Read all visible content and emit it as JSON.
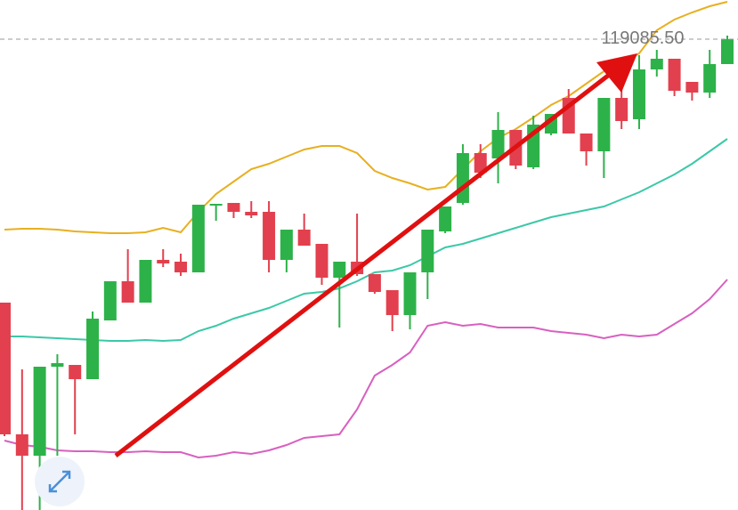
{
  "chart_data": {
    "type": "candlestick",
    "up_color": "#2db24a",
    "down_color": "#e2404e",
    "ylim": [
      113795,
      119525
    ],
    "open": [
      116125,
      114645,
      114405,
      115405,
      115425,
      115265,
      115925,
      116365,
      116125,
      116605,
      116585,
      116465,
      117215,
      117245,
      117145,
      117145,
      116605,
      116945,
      116785,
      116405,
      116585,
      116445,
      116265,
      115985,
      116465,
      116925,
      117245,
      117805,
      117745,
      118065,
      117645,
      118025,
      118425,
      118025,
      117825,
      118425,
      118185,
      118745,
      118865,
      118605,
      118485,
      118805
    ],
    "high": [
      116125,
      115375,
      115405,
      115545,
      115425,
      116025,
      116365,
      116725,
      116605,
      116725,
      116675,
      117225,
      117235,
      117245,
      117265,
      117265,
      116945,
      117125,
      116785,
      116585,
      117125,
      116445,
      116265,
      116465,
      116945,
      117205,
      117905,
      117905,
      118265,
      118065,
      118225,
      118245,
      118525,
      118025,
      118425,
      118625,
      118905,
      118965,
      118865,
      118605,
      118965,
      119125
    ],
    "low": [
      114625,
      113795,
      113795,
      114405,
      114645,
      115265,
      115925,
      116125,
      116125,
      116525,
      116425,
      116465,
      117045,
      117075,
      117075,
      116465,
      116465,
      116765,
      116325,
      115845,
      116425,
      116225,
      115805,
      115825,
      116165,
      116905,
      117225,
      117525,
      117465,
      117625,
      117625,
      118005,
      118025,
      117665,
      117525,
      118075,
      118075,
      118665,
      118445,
      118395,
      118425,
      118805
    ],
    "close": [
      114645,
      114405,
      115405,
      115445,
      115265,
      115945,
      116365,
      116125,
      116605,
      116565,
      116465,
      117225,
      117235,
      117145,
      117105,
      116605,
      116945,
      116765,
      116405,
      116585,
      116445,
      116245,
      115985,
      116465,
      116945,
      117205,
      117805,
      117585,
      118065,
      117665,
      118125,
      118245,
      118025,
      117825,
      118425,
      118165,
      118745,
      118865,
      118505,
      118485,
      118805,
      119085.5
    ],
    "bands": [
      {
        "color": "#e8b020",
        "values": [
          116945,
          116955,
          116955,
          116945,
          116925,
          116915,
          116905,
          116905,
          116915,
          116965,
          116915,
          117145,
          117345,
          117485,
          117625,
          117685,
          117765,
          117845,
          117885,
          117885,
          117805,
          117605,
          117525,
          117465,
          117395,
          117425,
          117625,
          117825,
          117975,
          118075,
          118205,
          118345,
          118445,
          118585,
          118725,
          118805,
          118925,
          119185,
          119305,
          119385,
          119455,
          119505
        ]
      },
      {
        "color": "#3cc8a8",
        "values": [
          115745,
          115745,
          115735,
          115725,
          115715,
          115705,
          115695,
          115695,
          115705,
          115695,
          115705,
          115805,
          115865,
          115945,
          116005,
          116065,
          116145,
          116225,
          116245,
          116285,
          116365,
          116465,
          116485,
          116545,
          116645,
          116745,
          116785,
          116845,
          116905,
          116965,
          117025,
          117085,
          117125,
          117165,
          117205,
          117285,
          117365,
          117465,
          117565,
          117685,
          117825,
          117965
        ]
      },
      {
        "color": "#d860c0",
        "values": [
          114575,
          114525,
          114505,
          114465,
          114455,
          114455,
          114445,
          114445,
          114455,
          114445,
          114445,
          114385,
          114405,
          114445,
          114425,
          114465,
          114525,
          114605,
          114625,
          114645,
          114925,
          115305,
          115425,
          115565,
          115865,
          115905,
          115865,
          115885,
          115845,
          115845,
          115845,
          115805,
          115785,
          115765,
          115725,
          115765,
          115745,
          115765,
          115885,
          116005,
          116165,
          116385
        ]
      }
    ],
    "price_line": {
      "value": 119085.5,
      "label": "119085.50"
    }
  }
}
